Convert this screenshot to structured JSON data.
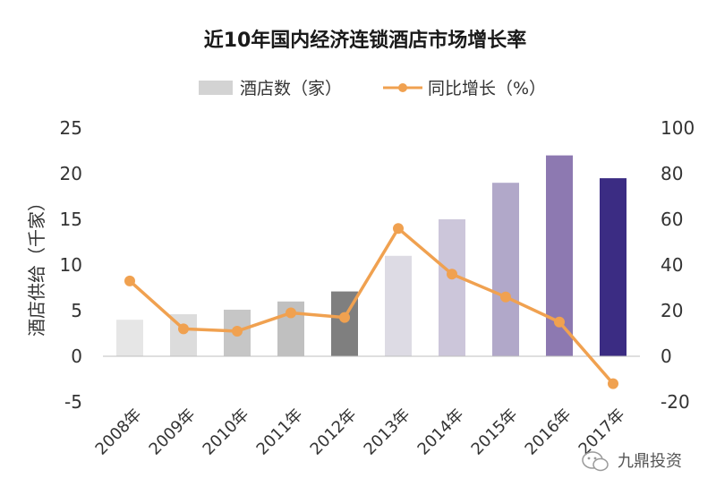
{
  "chart_data": {
    "type": "bar",
    "title": "近10年国内经济连锁酒店市场增长率",
    "categories": [
      "2008年",
      "2009年",
      "2010年",
      "2011年",
      "2012年",
      "2013年",
      "2014年",
      "2015年",
      "2016年",
      "2017年"
    ],
    "series": [
      {
        "name": "酒店数（家）",
        "type": "bar",
        "axis": "left",
        "values": [
          4.0,
          4.6,
          5.1,
          6.0,
          7.1,
          11.0,
          15.0,
          19.0,
          22.0,
          19.5
        ],
        "colors": [
          "#e6e6e6",
          "#dcdcdc",
          "#c6c6c6",
          "#c0c0c0",
          "#7f7f7f",
          "#dddbe4",
          "#ccc6da",
          "#b1a8c9",
          "#8d79b1",
          "#3b2c83"
        ]
      },
      {
        "name": "同比增长（%）",
        "type": "line",
        "axis": "right",
        "values": [
          33,
          12,
          11,
          19,
          17,
          56,
          36,
          26,
          15,
          -12
        ],
        "color": "#f0a150"
      }
    ],
    "ylabel": "酒店供给（千家）",
    "ylim": [
      -5,
      25
    ],
    "yticks": [
      "25",
      "20",
      "15",
      "10",
      "5",
      "0",
      "-5"
    ],
    "y2lim": [
      -20,
      100
    ],
    "y2ticks": [
      "100",
      "80",
      "60",
      "40",
      "20",
      "0",
      "-20"
    ],
    "legend_position": "top"
  },
  "watermark": {
    "text": "九鼎投资",
    "icon": "wechat-icon"
  }
}
